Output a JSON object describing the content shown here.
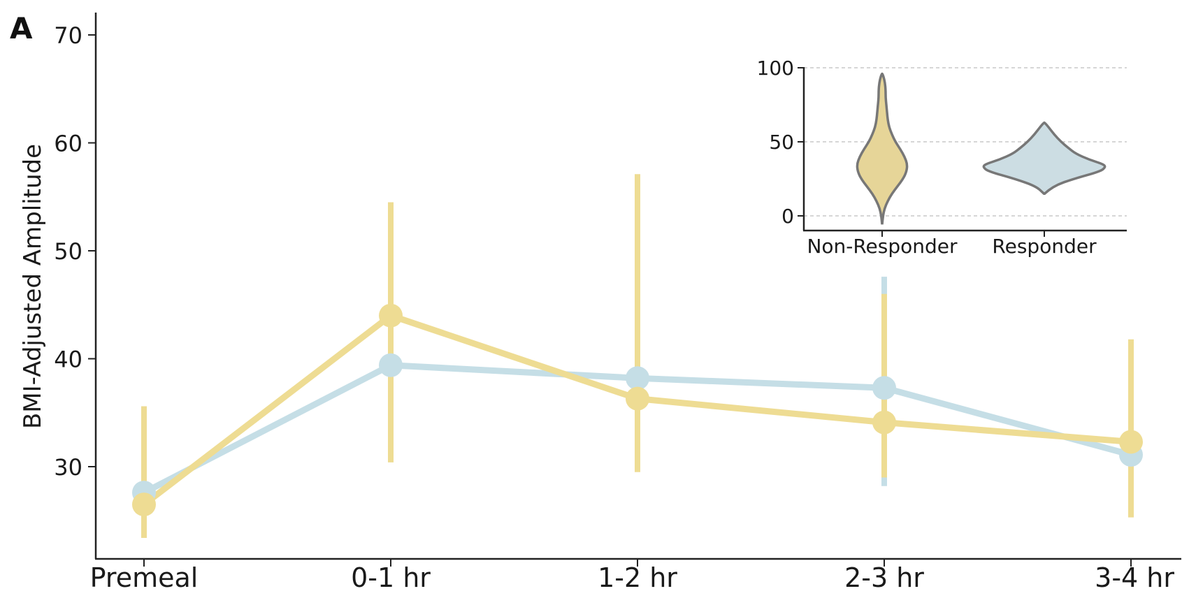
{
  "panel_label": "A",
  "colors": {
    "non_responder": "#EEDC93",
    "responder": "#C5DEE6",
    "violin_edge": "#777777",
    "violin_nr": "#E6D598",
    "violin_r": "#CCDDE3"
  },
  "chart_data": [
    {
      "type": "line",
      "ylabel": "BMI-Adjusted Amplitude",
      "categories": [
        "Premeal",
        "0-1 hr",
        "1-2 hr",
        "2-3 hr",
        "3-4 hr"
      ],
      "yticks": [
        30,
        40,
        50,
        60,
        70
      ],
      "ylim": [
        22.5,
        72
      ],
      "error_bars": true,
      "grid": false,
      "series": [
        {
          "key": "responder",
          "values": [
            27.6,
            39.4,
            38.2,
            37.3,
            31.1
          ],
          "err_low": [
            24.0,
            30.5,
            29.8,
            28.2,
            25.6
          ],
          "err_high": [
            34.8,
            54.2,
            56.8,
            47.6,
            41.6
          ]
        },
        {
          "key": "non_responder",
          "values": [
            26.5,
            44.0,
            36.3,
            34.1,
            32.3
          ],
          "err_low": [
            23.4,
            30.4,
            29.5,
            29.0,
            25.3
          ],
          "err_high": [
            35.6,
            54.5,
            57.1,
            46.0,
            41.8
          ]
        }
      ]
    },
    {
      "type": "violin",
      "categories": [
        "Non-Responder",
        "Responder"
      ],
      "yticks": [
        0,
        50,
        100
      ],
      "ylim": [
        -10,
        110
      ],
      "grid": true,
      "violins": [
        {
          "key": "non_responder",
          "range": [
            -5,
            96
          ],
          "profile": [
            [
              -5,
              0.2
            ],
            [
              0,
              1.2
            ],
            [
              5,
              3.5
            ],
            [
              10,
              8
            ],
            [
              15,
              14
            ],
            [
              20,
              22
            ],
            [
              25,
              30
            ],
            [
              30,
              35
            ],
            [
              35,
              36
            ],
            [
              40,
              32
            ],
            [
              45,
              26
            ],
            [
              50,
              19
            ],
            [
              55,
              14
            ],
            [
              60,
              10
            ],
            [
              65,
              8
            ],
            [
              70,
              7
            ],
            [
              75,
              6
            ],
            [
              80,
              5
            ],
            [
              85,
              5
            ],
            [
              90,
              4
            ],
            [
              94,
              2
            ],
            [
              96,
              0.3
            ]
          ]
        },
        {
          "key": "responder",
          "range": [
            15,
            63
          ],
          "profile": [
            [
              15,
              0.5
            ],
            [
              20,
              12
            ],
            [
              25,
              42
            ],
            [
              30,
              80
            ],
            [
              33,
              88
            ],
            [
              35,
              84
            ],
            [
              38,
              64
            ],
            [
              42,
              45
            ],
            [
              46,
              34
            ],
            [
              50,
              24
            ],
            [
              55,
              14
            ],
            [
              60,
              6
            ],
            [
              63,
              0.5
            ]
          ]
        }
      ]
    }
  ]
}
